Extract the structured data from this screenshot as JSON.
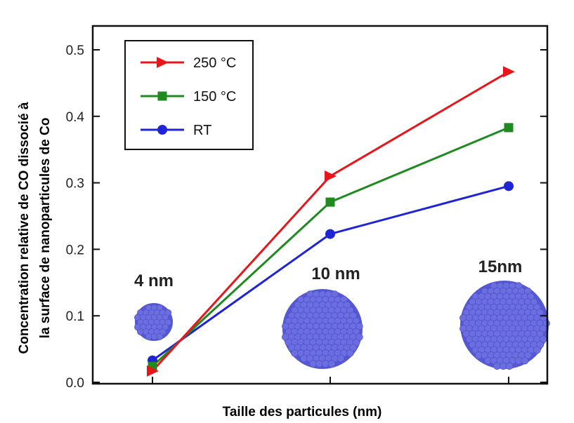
{
  "chart_data": {
    "type": "line",
    "xlabel": "Taille des particules (nm)",
    "ylabel_lines": [
      "Concentration relative de CO dissocié à",
      "la surface de nanoparticules de Co"
    ],
    "ylim": [
      0,
      0.52
    ],
    "yticks": [
      "0.0",
      "0.1",
      "0.2",
      "0.3",
      "0.4",
      "0.5"
    ],
    "categories": [
      "4 nm",
      "10 nm",
      "15nm"
    ],
    "series": [
      {
        "name": "250 °C",
        "color": "#e8161b",
        "marker": "triangle-right",
        "values": [
          0.017,
          0.31,
          0.467
        ]
      },
      {
        "name": "150 °C",
        "color": "#1f8a1f",
        "marker": "square",
        "values": [
          0.024,
          0.271,
          0.383
        ]
      },
      {
        "name": "RT",
        "color": "#1f25d6",
        "marker": "circle",
        "values": [
          0.033,
          0.223,
          0.295
        ]
      }
    ],
    "legend_position": "top-left",
    "particle_labels": [
      "4 nm",
      "10 nm",
      "15nm"
    ],
    "particle_color": "#6b6ee0"
  }
}
